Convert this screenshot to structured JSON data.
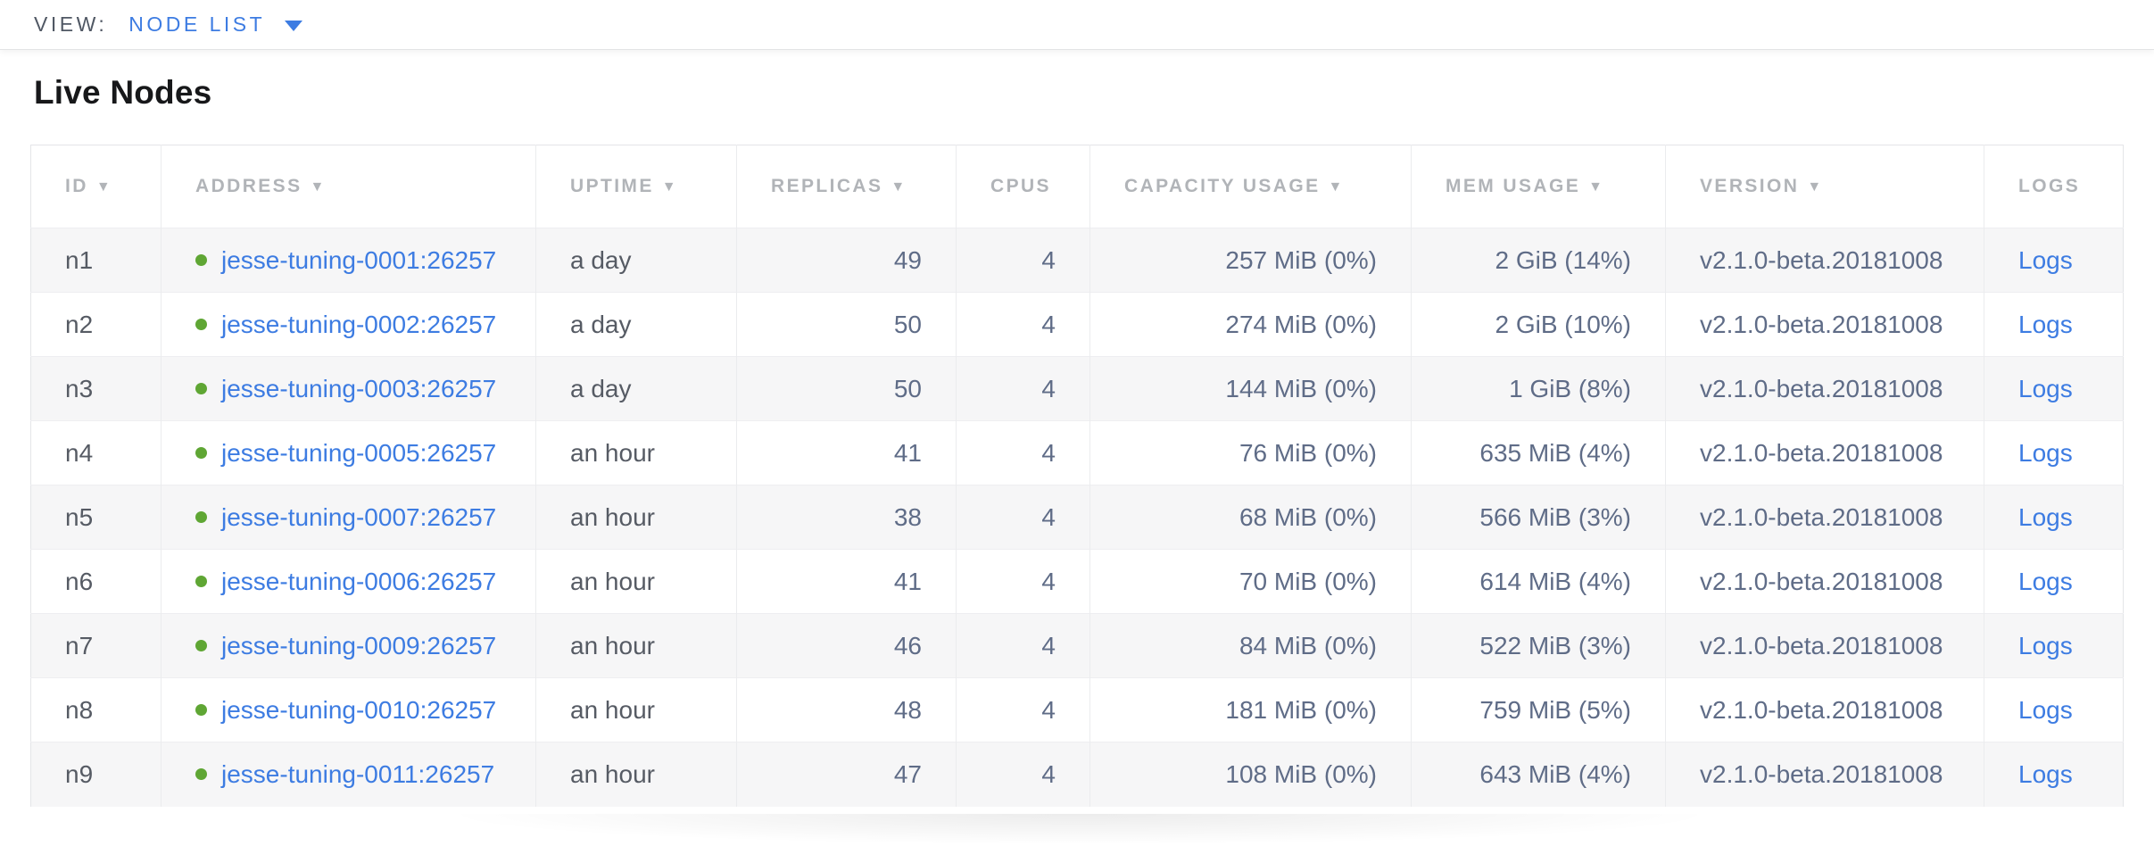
{
  "colors": {
    "accent": "#3d7ce2",
    "status_green": "#5fa634",
    "header_text": "#b1b4b8",
    "text_primary": "#565b64",
    "text_numeric": "#5f6c87",
    "stripe": "#f6f6f7",
    "border": "#e4e5e8"
  },
  "icons": {
    "view_dropdown_caret": "css-triangle-down",
    "sort_desc_glyph": "▼",
    "node_status_dot": "css-circle-green"
  },
  "view_bar": {
    "label": "VIEW:",
    "selected_view": "NODE LIST"
  },
  "page": {
    "heading": "Live Nodes"
  },
  "table": {
    "logs_label": "Logs",
    "columns": [
      {
        "key": "id",
        "label": "ID",
        "sort_arrow": true
      },
      {
        "key": "address",
        "label": "ADDRESS",
        "sort_arrow": true
      },
      {
        "key": "uptime",
        "label": "UPTIME",
        "sort_arrow": true
      },
      {
        "key": "replicas",
        "label": "REPLICAS",
        "sort_arrow": true
      },
      {
        "key": "cpus",
        "label": "CPUS",
        "sort_arrow": false
      },
      {
        "key": "capacity_usage",
        "label": "CAPACITY USAGE",
        "sort_arrow": true
      },
      {
        "key": "mem_usage",
        "label": "MEM USAGE",
        "sort_arrow": true
      },
      {
        "key": "version",
        "label": "VERSION",
        "sort_arrow": true
      },
      {
        "key": "logs",
        "label": "LOGS",
        "sort_arrow": false
      }
    ],
    "rows": [
      {
        "id": "n1",
        "address": "jesse-tuning-0001:26257",
        "uptime": "a day",
        "replicas": "49",
        "cpus": "4",
        "capacity_usage": "257 MiB (0%)",
        "mem_usage": "2 GiB (14%)",
        "version": "v2.1.0-beta.20181008"
      },
      {
        "id": "n2",
        "address": "jesse-tuning-0002:26257",
        "uptime": "a day",
        "replicas": "50",
        "cpus": "4",
        "capacity_usage": "274 MiB (0%)",
        "mem_usage": "2 GiB (10%)",
        "version": "v2.1.0-beta.20181008"
      },
      {
        "id": "n3",
        "address": "jesse-tuning-0003:26257",
        "uptime": "a day",
        "replicas": "50",
        "cpus": "4",
        "capacity_usage": "144 MiB (0%)",
        "mem_usage": "1 GiB (8%)",
        "version": "v2.1.0-beta.20181008"
      },
      {
        "id": "n4",
        "address": "jesse-tuning-0005:26257",
        "uptime": "an hour",
        "replicas": "41",
        "cpus": "4",
        "capacity_usage": "76 MiB (0%)",
        "mem_usage": "635 MiB (4%)",
        "version": "v2.1.0-beta.20181008"
      },
      {
        "id": "n5",
        "address": "jesse-tuning-0007:26257",
        "uptime": "an hour",
        "replicas": "38",
        "cpus": "4",
        "capacity_usage": "68 MiB (0%)",
        "mem_usage": "566 MiB (3%)",
        "version": "v2.1.0-beta.20181008"
      },
      {
        "id": "n6",
        "address": "jesse-tuning-0006:26257",
        "uptime": "an hour",
        "replicas": "41",
        "cpus": "4",
        "capacity_usage": "70 MiB (0%)",
        "mem_usage": "614 MiB (4%)",
        "version": "v2.1.0-beta.20181008"
      },
      {
        "id": "n7",
        "address": "jesse-tuning-0009:26257",
        "uptime": "an hour",
        "replicas": "46",
        "cpus": "4",
        "capacity_usage": "84 MiB (0%)",
        "mem_usage": "522 MiB (3%)",
        "version": "v2.1.0-beta.20181008"
      },
      {
        "id": "n8",
        "address": "jesse-tuning-0010:26257",
        "uptime": "an hour",
        "replicas": "48",
        "cpus": "4",
        "capacity_usage": "181 MiB (0%)",
        "mem_usage": "759 MiB (5%)",
        "version": "v2.1.0-beta.20181008"
      },
      {
        "id": "n9",
        "address": "jesse-tuning-0011:26257",
        "uptime": "an hour",
        "replicas": "47",
        "cpus": "4",
        "capacity_usage": "108 MiB (0%)",
        "mem_usage": "643 MiB (4%)",
        "version": "v2.1.0-beta.20181008"
      }
    ]
  }
}
